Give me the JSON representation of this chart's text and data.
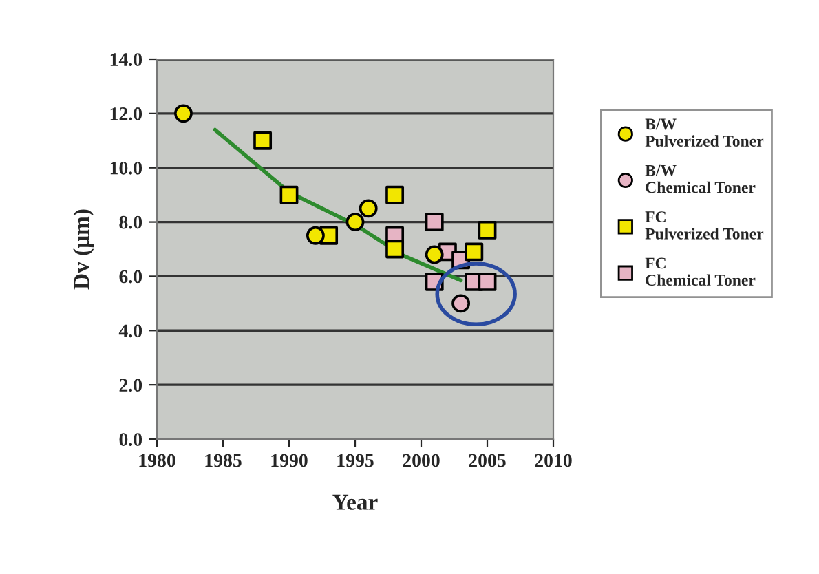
{
  "chart_data": {
    "type": "scatter",
    "xlabel": "Year",
    "ylabel": "Dv (μm)",
    "xlim": [
      1980,
      2010
    ],
    "xticks": [
      1980,
      1985,
      1990,
      1995,
      2000,
      2005,
      2010
    ],
    "ylim": [
      0,
      14
    ],
    "yticks": [
      {
        "value": 0,
        "label": "0.0"
      },
      {
        "value": 2,
        "label": "2.0"
      },
      {
        "value": 4,
        "label": "4.0"
      },
      {
        "value": 6,
        "label": "6.0"
      },
      {
        "value": 8,
        "label": "8.0"
      },
      {
        "value": 10,
        "label": "10.0"
      },
      {
        "value": 12,
        "label": "12.0"
      },
      {
        "value": 14,
        "label": "14.0"
      }
    ],
    "grid": "y",
    "legend": "right",
    "series": [
      {
        "name": "B/W\nPulverized Toner",
        "color": "#f2e600",
        "marker": "circle",
        "x": [
          1982,
          1992,
          1995,
          1996,
          2001
        ],
        "values": [
          12.0,
          7.5,
          8.0,
          8.5,
          6.8
        ]
      },
      {
        "name": "B/W\nChemical Toner",
        "color": "#e6b4c4",
        "marker": "circle",
        "x": [
          2003
        ],
        "values": [
          5.0
        ]
      },
      {
        "name": "FC\nPulverized Toner",
        "color": "#f2e600",
        "marker": "square",
        "x": [
          1988,
          1990,
          1993,
          1998,
          1998,
          2004,
          2005
        ],
        "values": [
          11.0,
          9.0,
          7.5,
          9.0,
          7.0,
          6.9,
          7.7
        ]
      },
      {
        "name": "FC\nChemical Toner",
        "color": "#e6b4c4",
        "marker": "square",
        "x": [
          1998,
          2001,
          2001,
          2002,
          2003,
          2004,
          2005
        ],
        "values": [
          7.5,
          8.0,
          5.8,
          6.9,
          6.6,
          5.8,
          5.8
        ]
      },
      {
        "type": "line",
        "color": "#2e8b2e",
        "marker": "none",
        "x": [
          1984.4,
          1990,
          1995,
          1998.7,
          2003
        ],
        "values": [
          11.4,
          9.1,
          7.9,
          6.75,
          5.85
        ]
      }
    ]
  }
}
